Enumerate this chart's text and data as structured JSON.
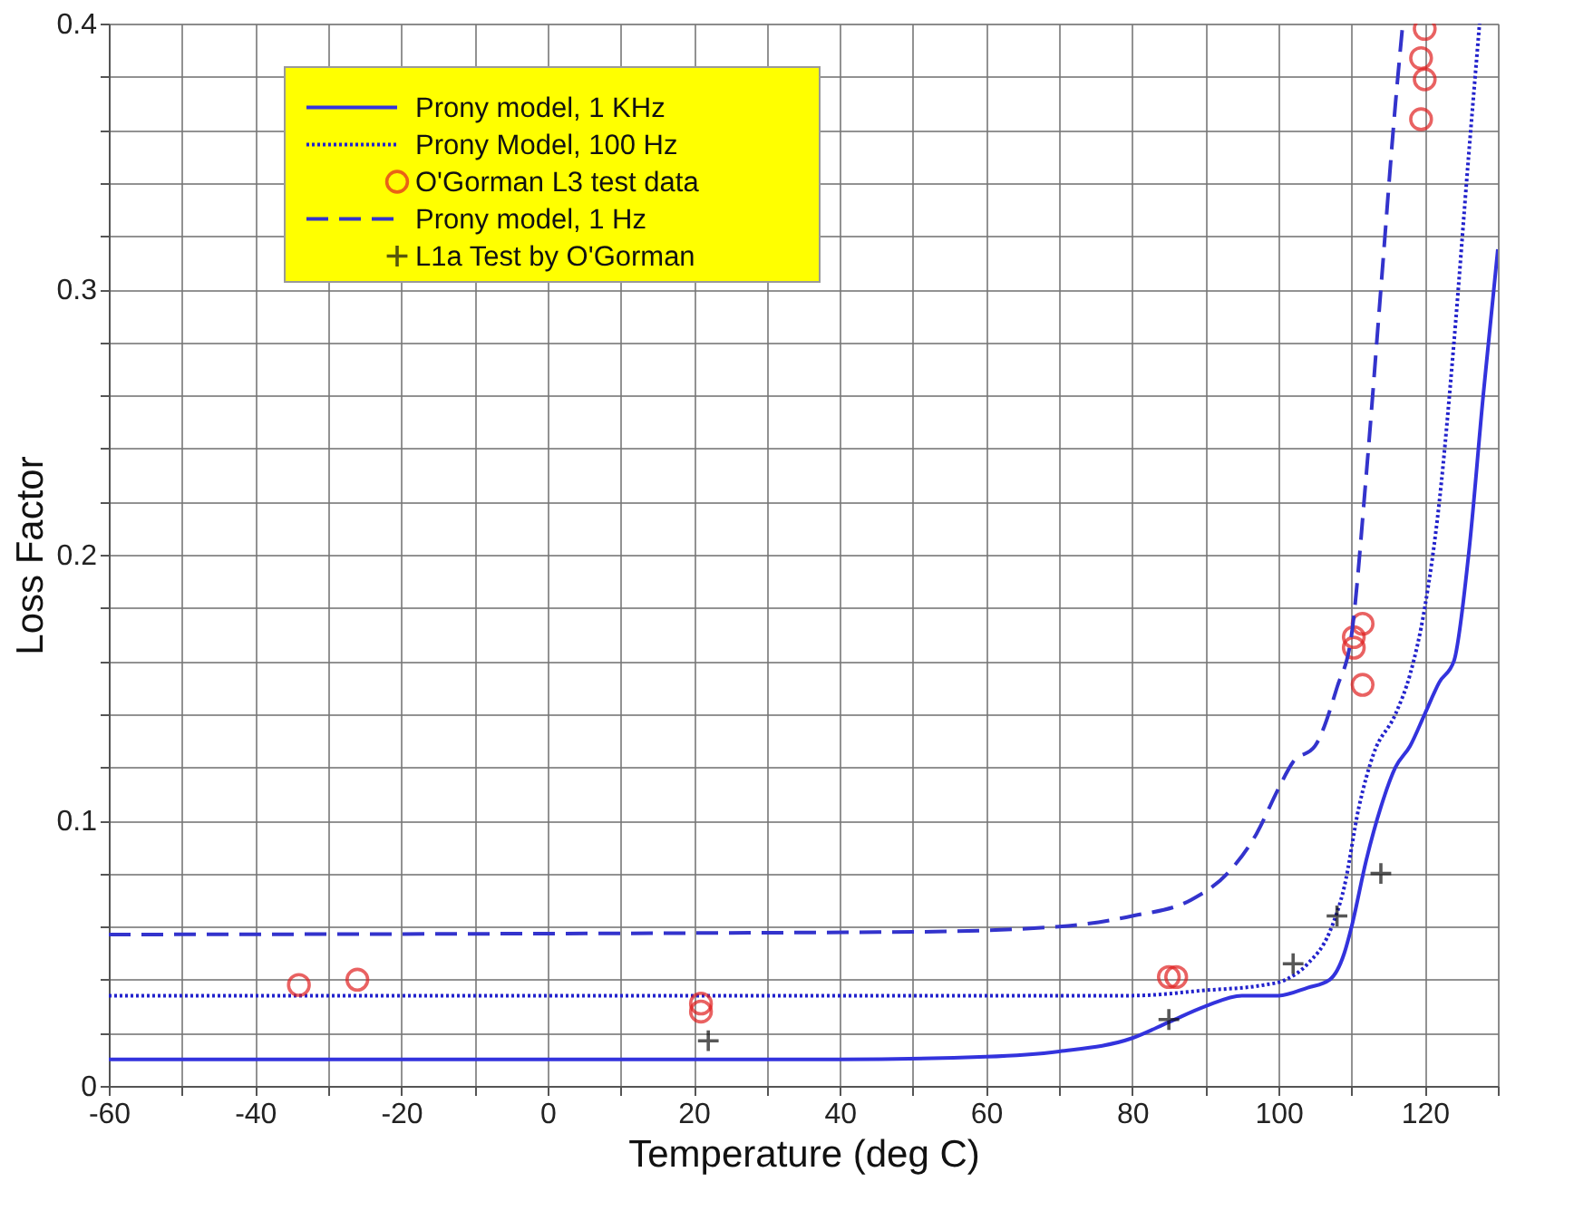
{
  "chart_data": {
    "type": "line",
    "xlabel": "Temperature (deg C)",
    "ylabel": "Loss Factor",
    "xlim": [
      -60,
      130
    ],
    "ylim": [
      0,
      0.4
    ],
    "xticks": [
      -60,
      {
        "value": -50,
        "label": null
      },
      -40,
      {
        "value": -30,
        "label": null
      },
      -20,
      {
        "value": -10,
        "label": null
      },
      0,
      {
        "value": 10,
        "label": null
      },
      20,
      {
        "value": 30,
        "label": null
      },
      40,
      {
        "value": 50,
        "label": null
      },
      60,
      {
        "value": 70,
        "label": null
      },
      80,
      {
        "value": 90,
        "label": null
      },
      100,
      {
        "value": 110,
        "label": null
      },
      120,
      {
        "value": 130,
        "label": null
      }
    ],
    "yticks": [
      0,
      {
        "value": 0.02,
        "label": null
      },
      {
        "value": 0.04,
        "label": null
      },
      {
        "value": 0.06,
        "label": null
      },
      {
        "value": 0.08,
        "label": null
      },
      0.1,
      {
        "value": 0.12,
        "label": null
      },
      {
        "value": 0.14,
        "label": null
      },
      {
        "value": 0.16,
        "label": null
      },
      {
        "value": 0.18,
        "label": null
      },
      0.2,
      {
        "value": 0.22,
        "label": null
      },
      {
        "value": 0.24,
        "label": null
      },
      {
        "value": 0.26,
        "label": null
      },
      {
        "value": 0.28,
        "label": null
      },
      0.3,
      {
        "value": 0.32,
        "label": null
      },
      {
        "value": 0.34,
        "label": null
      },
      {
        "value": 0.36,
        "label": null
      },
      {
        "value": 0.38,
        "label": null
      },
      0.4
    ],
    "grid": true,
    "legend": "top left",
    "series": [
      {
        "name": "Prony model, 1 KHz",
        "line_style": "solid",
        "color": "#3333dd",
        "x": [
          -60,
          40,
          60,
          70,
          80,
          85,
          90,
          95,
          100,
          104,
          107,
          109,
          110,
          112,
          114,
          116,
          118,
          120,
          122,
          124,
          126,
          128,
          130
        ],
        "values": [
          0.01,
          0.01,
          0.011,
          0.013,
          0.018,
          0.024,
          0.03,
          0.034,
          0.034,
          0.037,
          0.04,
          0.05,
          0.06,
          0.085,
          0.105,
          0.12,
          0.128,
          0.14,
          0.152,
          0.16,
          0.2,
          0.26,
          0.315
        ]
      },
      {
        "name": "Prony Model, 100 Hz",
        "line_style": "dotted",
        "color": "#2222cc",
        "x": [
          -60,
          80,
          90,
          98,
          101,
          104,
          107,
          109,
          111,
          113,
          116,
          118,
          120,
          122,
          124,
          126,
          127.5
        ],
        "values": [
          0.034,
          0.034,
          0.036,
          0.038,
          0.04,
          0.046,
          0.058,
          0.075,
          0.105,
          0.125,
          0.14,
          0.155,
          0.18,
          0.22,
          0.28,
          0.35,
          0.4
        ]
      },
      {
        "name": "O'Gorman L3 test data",
        "type": "scatter",
        "marker": "circle",
        "color": "#e02020",
        "x": [
          -34,
          -26,
          21,
          21,
          85,
          86,
          110.3,
          111.5,
          110.3,
          111.5,
          120,
          119.5,
          120,
          119.5
        ],
        "values": [
          0.038,
          0.04,
          0.031,
          0.028,
          0.041,
          0.041,
          0.169,
          0.174,
          0.165,
          0.151,
          0.398,
          0.387,
          0.379,
          0.364
        ]
      },
      {
        "name": "Prony model, 1 Hz",
        "line_style": "dashed",
        "color": "#3333cc",
        "x": [
          -60,
          50,
          70,
          80,
          88,
          93,
          97,
          100,
          102,
          105,
          108,
          110,
          112,
          114,
          116,
          117
        ],
        "values": [
          0.057,
          0.058,
          0.06,
          0.064,
          0.07,
          0.08,
          0.095,
          0.112,
          0.122,
          0.128,
          0.15,
          0.17,
          0.23,
          0.3,
          0.37,
          0.4
        ]
      },
      {
        "name": "L1a Test by O'Gorman",
        "type": "scatter",
        "marker": "cross",
        "color": "#111111",
        "x": [
          22,
          85,
          102,
          108,
          114
        ],
        "values": [
          0.017,
          0.025,
          0.046,
          0.064,
          0.08
        ]
      }
    ]
  }
}
